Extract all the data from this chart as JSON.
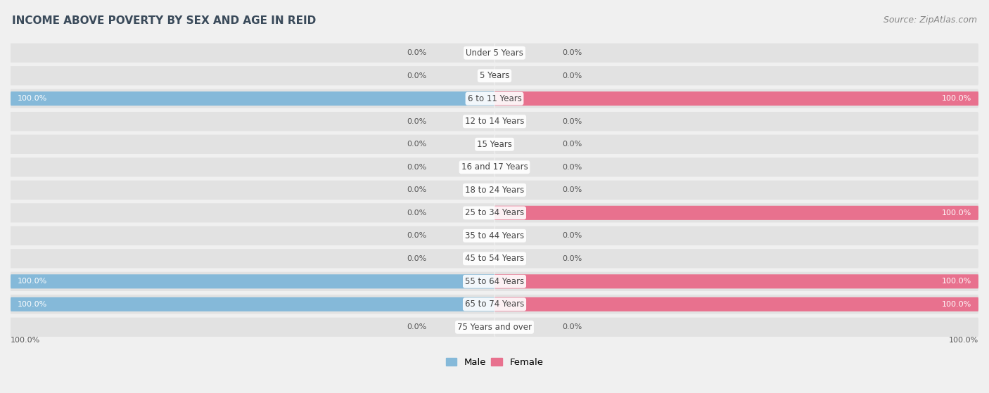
{
  "title": "INCOME ABOVE POVERTY BY SEX AND AGE IN REID",
  "source": "Source: ZipAtlas.com",
  "categories": [
    "Under 5 Years",
    "5 Years",
    "6 to 11 Years",
    "12 to 14 Years",
    "15 Years",
    "16 and 17 Years",
    "18 to 24 Years",
    "25 to 34 Years",
    "35 to 44 Years",
    "45 to 54 Years",
    "55 to 64 Years",
    "65 to 74 Years",
    "75 Years and over"
  ],
  "male_values": [
    0.0,
    0.0,
    100.0,
    0.0,
    0.0,
    0.0,
    0.0,
    0.0,
    0.0,
    0.0,
    100.0,
    100.0,
    0.0
  ],
  "female_values": [
    0.0,
    0.0,
    100.0,
    0.0,
    0.0,
    0.0,
    0.0,
    100.0,
    0.0,
    0.0,
    100.0,
    100.0,
    0.0
  ],
  "male_color_bar": "#85b9d9",
  "female_color_bar": "#e8718e",
  "bg_color": "#f0f0f0",
  "row_bg_color": "#e2e2e2",
  "title_color": "#3a4a5a",
  "source_color": "#888888",
  "label_color": "#444444",
  "value_label_dark": "#555555",
  "value_label_white": "#ffffff",
  "bar_height": 0.62,
  "xlim": 100,
  "legend_male_color": "#85b9d9",
  "legend_female_color": "#e8718e",
  "title_fontsize": 11,
  "source_fontsize": 9,
  "label_fontsize": 8.5,
  "value_fontsize": 8
}
